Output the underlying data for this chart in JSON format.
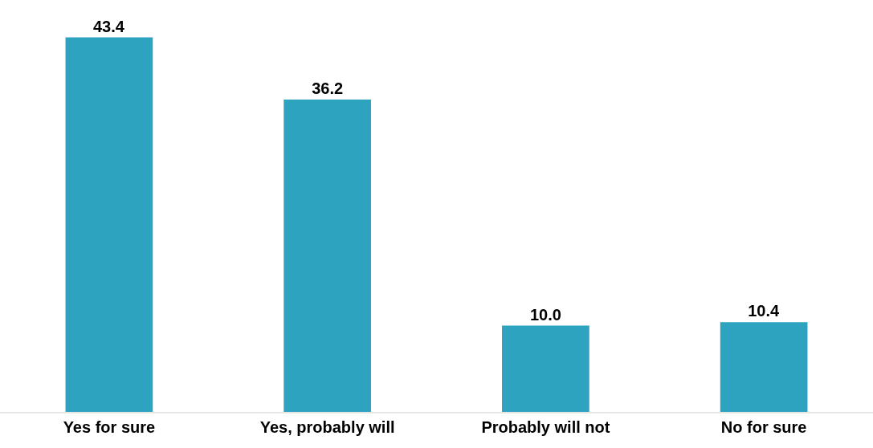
{
  "chart_data": {
    "type": "bar",
    "categories": [
      "Yes for sure",
      "Yes, probably will",
      "Probably will not",
      "No for sure"
    ],
    "values": [
      43.4,
      36.2,
      10.0,
      10.4
    ],
    "value_labels": [
      "43.4",
      "36.2",
      "10.0",
      "10.4"
    ],
    "color": "#2ea3bf"
  }
}
